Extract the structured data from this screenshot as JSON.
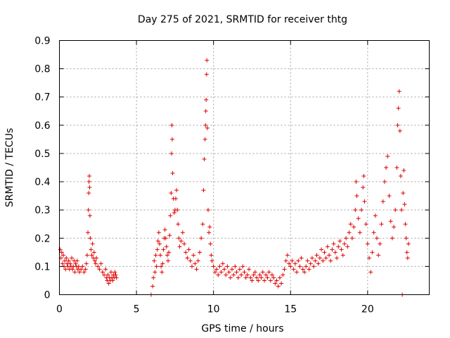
{
  "chart_data": {
    "type": "scatter",
    "title": "Day 275 of 2021, SRMTID for receiver thtg",
    "xlabel": "GPS time / hours",
    "ylabel": "SRMTID / TECUs",
    "xlim": [
      0,
      24
    ],
    "ylim": [
      0,
      0.9
    ],
    "xticks": [
      0,
      5,
      10,
      15,
      20
    ],
    "xtick_labels": [
      "0",
      "5",
      "10",
      "15",
      "20"
    ],
    "yticks": [
      0,
      0.1,
      0.2,
      0.3,
      0.4,
      0.5,
      0.6,
      0.7,
      0.8,
      0.9
    ],
    "ytick_labels": [
      "0",
      "0.1",
      "0.2",
      "0.3",
      "0.4",
      "0.5",
      "0.6",
      "0.7",
      "0.8",
      "0.9"
    ],
    "grid": true,
    "marker": "plus",
    "color": "#e00000",
    "series": [
      {
        "name": "SRMTID",
        "points": [
          [
            0.05,
            0.16
          ],
          [
            0.1,
            0.13
          ],
          [
            0.15,
            0.15
          ],
          [
            0.2,
            0.11
          ],
          [
            0.25,
            0.14
          ],
          [
            0.3,
            0.1
          ],
          [
            0.35,
            0.12
          ],
          [
            0.4,
            0.09
          ],
          [
            0.45,
            0.13
          ],
          [
            0.5,
            0.11
          ],
          [
            0.55,
            0.1
          ],
          [
            0.6,
            0.12
          ],
          [
            0.65,
            0.09
          ],
          [
            0.7,
            0.11
          ],
          [
            0.75,
            0.1
          ],
          [
            0.8,
            0.13
          ],
          [
            0.85,
            0.09
          ],
          [
            0.9,
            0.1
          ],
          [
            0.95,
            0.12
          ],
          [
            1.0,
            0.08
          ],
          [
            1.05,
            0.11
          ],
          [
            1.1,
            0.1
          ],
          [
            1.15,
            0.12
          ],
          [
            1.2,
            0.09
          ],
          [
            1.25,
            0.1
          ],
          [
            1.3,
            0.08
          ],
          [
            1.4,
            0.09
          ],
          [
            1.5,
            0.1
          ],
          [
            1.6,
            0.08
          ],
          [
            1.7,
            0.09
          ],
          [
            1.75,
            0.11
          ],
          [
            1.8,
            0.14
          ],
          [
            1.85,
            0.22
          ],
          [
            1.88,
            0.3
          ],
          [
            1.9,
            0.36
          ],
          [
            1.92,
            0.4
          ],
          [
            1.94,
            0.42
          ],
          [
            1.96,
            0.38
          ],
          [
            1.98,
            0.28
          ],
          [
            2.0,
            0.2
          ],
          [
            2.05,
            0.16
          ],
          [
            2.1,
            0.14
          ],
          [
            2.15,
            0.18
          ],
          [
            2.2,
            0.13
          ],
          [
            2.25,
            0.15
          ],
          [
            2.3,
            0.12
          ],
          [
            2.35,
            0.11
          ],
          [
            2.4,
            0.13
          ],
          [
            2.5,
            0.1
          ],
          [
            2.6,
            0.09
          ],
          [
            2.7,
            0.11
          ],
          [
            2.8,
            0.08
          ],
          [
            2.9,
            0.07
          ],
          [
            3.0,
            0.09
          ],
          [
            3.05,
            0.06
          ],
          [
            3.1,
            0.05
          ],
          [
            3.15,
            0.07
          ],
          [
            3.2,
            0.04
          ],
          [
            3.25,
            0.06
          ],
          [
            3.3,
            0.05
          ],
          [
            3.35,
            0.08
          ],
          [
            3.4,
            0.06
          ],
          [
            3.45,
            0.05
          ],
          [
            3.5,
            0.07
          ],
          [
            3.55,
            0.06
          ],
          [
            3.6,
            0.08
          ],
          [
            3.65,
            0.07
          ],
          [
            3.7,
            0.06
          ],
          [
            5.95,
            0.0
          ],
          [
            6.05,
            0.03
          ],
          [
            6.1,
            0.06
          ],
          [
            6.15,
            0.12
          ],
          [
            6.2,
            0.08
          ],
          [
            6.25,
            0.14
          ],
          [
            6.3,
            0.1
          ],
          [
            6.35,
            0.16
          ],
          [
            6.4,
            0.19
          ],
          [
            6.45,
            0.22
          ],
          [
            6.5,
            0.18
          ],
          [
            6.55,
            0.14
          ],
          [
            6.6,
            0.1
          ],
          [
            6.65,
            0.08
          ],
          [
            6.7,
            0.11
          ],
          [
            6.75,
            0.16
          ],
          [
            6.8,
            0.2
          ],
          [
            6.85,
            0.23
          ],
          [
            6.9,
            0.2
          ],
          [
            6.95,
            0.17
          ],
          [
            7.0,
            0.14
          ],
          [
            7.05,
            0.12
          ],
          [
            7.1,
            0.15
          ],
          [
            7.15,
            0.21
          ],
          [
            7.2,
            0.28
          ],
          [
            7.25,
            0.36
          ],
          [
            7.28,
            0.5
          ],
          [
            7.3,
            0.6
          ],
          [
            7.32,
            0.55
          ],
          [
            7.35,
            0.43
          ],
          [
            7.4,
            0.34
          ],
          [
            7.45,
            0.29
          ],
          [
            7.5,
            0.3
          ],
          [
            7.55,
            0.34
          ],
          [
            7.6,
            0.37
          ],
          [
            7.65,
            0.3
          ],
          [
            7.7,
            0.25
          ],
          [
            7.75,
            0.2
          ],
          [
            7.8,
            0.17
          ],
          [
            7.9,
            0.19
          ],
          [
            8.0,
            0.22
          ],
          [
            8.1,
            0.18
          ],
          [
            8.2,
            0.15
          ],
          [
            8.3,
            0.13
          ],
          [
            8.4,
            0.16
          ],
          [
            8.5,
            0.12
          ],
          [
            8.6,
            0.1
          ],
          [
            8.7,
            0.14
          ],
          [
            8.8,
            0.11
          ],
          [
            8.9,
            0.09
          ],
          [
            9.0,
            0.12
          ],
          [
            9.1,
            0.15
          ],
          [
            9.2,
            0.2
          ],
          [
            9.3,
            0.25
          ],
          [
            9.35,
            0.37
          ],
          [
            9.4,
            0.48
          ],
          [
            9.45,
            0.55
          ],
          [
            9.48,
            0.6
          ],
          [
            9.5,
            0.65
          ],
          [
            9.52,
            0.69
          ],
          [
            9.55,
            0.78
          ],
          [
            9.57,
            0.83
          ],
          [
            9.6,
            0.59
          ],
          [
            9.65,
            0.3
          ],
          [
            9.7,
            0.22
          ],
          [
            9.75,
            0.24
          ],
          [
            9.8,
            0.18
          ],
          [
            9.85,
            0.14
          ],
          [
            9.9,
            0.12
          ],
          [
            10.0,
            0.1
          ],
          [
            10.1,
            0.08
          ],
          [
            10.2,
            0.09
          ],
          [
            10.3,
            0.07
          ],
          [
            10.4,
            0.1
          ],
          [
            10.5,
            0.08
          ],
          [
            10.6,
            0.11
          ],
          [
            10.7,
            0.09
          ],
          [
            10.8,
            0.07
          ],
          [
            10.9,
            0.1
          ],
          [
            11.0,
            0.08
          ],
          [
            11.1,
            0.06
          ],
          [
            11.2,
            0.09
          ],
          [
            11.3,
            0.07
          ],
          [
            11.4,
            0.1
          ],
          [
            11.5,
            0.08
          ],
          [
            11.6,
            0.06
          ],
          [
            11.7,
            0.09
          ],
          [
            11.8,
            0.07
          ],
          [
            11.9,
            0.1
          ],
          [
            12.0,
            0.08
          ],
          [
            12.1,
            0.06
          ],
          [
            12.2,
            0.07
          ],
          [
            12.3,
            0.09
          ],
          [
            12.4,
            0.06
          ],
          [
            12.5,
            0.05
          ],
          [
            12.6,
            0.07
          ],
          [
            12.7,
            0.08
          ],
          [
            12.8,
            0.06
          ],
          [
            12.9,
            0.05
          ],
          [
            13.0,
            0.07
          ],
          [
            13.1,
            0.06
          ],
          [
            13.2,
            0.08
          ],
          [
            13.3,
            0.05
          ],
          [
            13.4,
            0.07
          ],
          [
            13.5,
            0.06
          ],
          [
            13.6,
            0.08
          ],
          [
            13.7,
            0.05
          ],
          [
            13.8,
            0.07
          ],
          [
            13.9,
            0.06
          ],
          [
            14.0,
            0.04
          ],
          [
            14.1,
            0.05
          ],
          [
            14.2,
            0.03
          ],
          [
            14.3,
            0.06
          ],
          [
            14.4,
            0.04
          ],
          [
            14.5,
            0.07
          ],
          [
            14.6,
            0.09
          ],
          [
            14.7,
            0.12
          ],
          [
            14.8,
            0.14
          ],
          [
            14.9,
            0.11
          ],
          [
            15.0,
            0.1
          ],
          [
            15.1,
            0.12
          ],
          [
            15.2,
            0.09
          ],
          [
            15.3,
            0.11
          ],
          [
            15.4,
            0.08
          ],
          [
            15.5,
            0.12
          ],
          [
            15.6,
            0.1
          ],
          [
            15.7,
            0.13
          ],
          [
            15.8,
            0.09
          ],
          [
            15.9,
            0.08
          ],
          [
            16.0,
            0.1
          ],
          [
            16.1,
            0.12
          ],
          [
            16.2,
            0.09
          ],
          [
            16.3,
            0.11
          ],
          [
            16.4,
            0.13
          ],
          [
            16.5,
            0.1
          ],
          [
            16.6,
            0.12
          ],
          [
            16.7,
            0.14
          ],
          [
            16.8,
            0.11
          ],
          [
            16.9,
            0.13
          ],
          [
            17.0,
            0.16
          ],
          [
            17.1,
            0.12
          ],
          [
            17.2,
            0.15
          ],
          [
            17.3,
            0.13
          ],
          [
            17.4,
            0.17
          ],
          [
            17.5,
            0.14
          ],
          [
            17.6,
            0.12
          ],
          [
            17.7,
            0.16
          ],
          [
            17.8,
            0.18
          ],
          [
            17.9,
            0.15
          ],
          [
            18.0,
            0.13
          ],
          [
            18.1,
            0.17
          ],
          [
            18.2,
            0.19
          ],
          [
            18.3,
            0.16
          ],
          [
            18.4,
            0.14
          ],
          [
            18.5,
            0.18
          ],
          [
            18.6,
            0.2
          ],
          [
            18.7,
            0.17
          ],
          [
            18.8,
            0.22
          ],
          [
            18.9,
            0.25
          ],
          [
            19.0,
            0.2
          ],
          [
            19.1,
            0.24
          ],
          [
            19.2,
            0.3
          ],
          [
            19.25,
            0.4
          ],
          [
            19.3,
            0.35
          ],
          [
            19.4,
            0.27
          ],
          [
            19.5,
            0.22
          ],
          [
            19.6,
            0.3
          ],
          [
            19.7,
            0.38
          ],
          [
            19.75,
            0.42
          ],
          [
            19.8,
            0.33
          ],
          [
            19.9,
            0.25
          ],
          [
            20.0,
            0.18
          ],
          [
            20.1,
            0.13
          ],
          [
            20.2,
            0.08
          ],
          [
            20.3,
            0.15
          ],
          [
            20.4,
            0.22
          ],
          [
            20.5,
            0.28
          ],
          [
            20.6,
            0.2
          ],
          [
            20.7,
            0.14
          ],
          [
            20.8,
            0.18
          ],
          [
            20.9,
            0.25
          ],
          [
            21.0,
            0.33
          ],
          [
            21.1,
            0.4
          ],
          [
            21.2,
            0.45
          ],
          [
            21.3,
            0.49
          ],
          [
            21.4,
            0.35
          ],
          [
            21.5,
            0.26
          ],
          [
            21.6,
            0.2
          ],
          [
            21.7,
            0.24
          ],
          [
            21.8,
            0.3
          ],
          [
            21.9,
            0.45
          ],
          [
            21.95,
            0.6
          ],
          [
            22.0,
            0.66
          ],
          [
            22.05,
            0.72
          ],
          [
            22.1,
            0.58
          ],
          [
            22.15,
            0.42
          ],
          [
            22.2,
            0.3
          ],
          [
            22.25,
            0.0
          ],
          [
            22.3,
            0.36
          ],
          [
            22.35,
            0.44
          ],
          [
            22.4,
            0.32
          ],
          [
            22.45,
            0.25
          ],
          [
            22.5,
            0.2
          ],
          [
            22.55,
            0.15
          ],
          [
            22.6,
            0.13
          ],
          [
            22.65,
            0.18
          ]
        ]
      }
    ]
  }
}
